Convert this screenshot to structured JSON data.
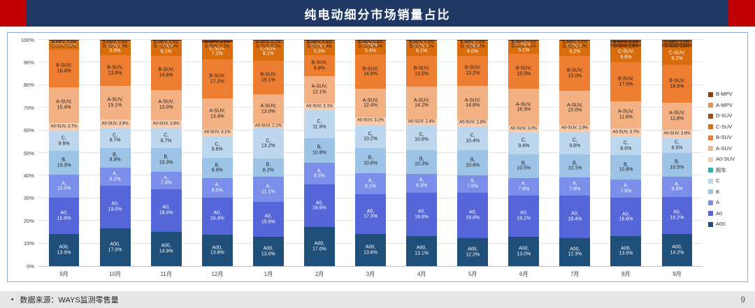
{
  "header": {
    "title": "纯电动细分市场销量占比",
    "bg_color": "#1F3864",
    "accent_color": "#C00000"
  },
  "footer": {
    "bullet": "•",
    "source": "数据来源：WAYS监测零售量",
    "page_number": "9"
  },
  "chart_data": {
    "type": "bar",
    "stacked": true,
    "percent_stacked": true,
    "title": "纯电动细分市场销量占比",
    "grid": true,
    "legend_position": "right",
    "ylim": [
      0,
      100
    ],
    "y_ticks": [
      "0%",
      "10%",
      "20%",
      "30%",
      "40%",
      "50%",
      "60%",
      "70%",
      "80%",
      "90%",
      "100%"
    ],
    "categories": [
      "9月",
      "10月",
      "11月",
      "12月",
      "1月",
      "2月",
      "3月",
      "4月",
      "5月",
      "6月",
      "7月",
      "8月",
      "9月"
    ],
    "legend_order": [
      "B-MPV",
      "A-MPV",
      "D-SUV",
      "C-SUV",
      "B-SUV",
      "A-SUV",
      "A0-SUV",
      "跑车",
      "C",
      "B",
      "A",
      "A0",
      "A00"
    ],
    "series": [
      {
        "name": "A00",
        "color": "#1F4E79",
        "label_color": "#FFFFFF",
        "show_label": true,
        "values": [
          13.9,
          17.0,
          14.9,
          13.8,
          13.0,
          17.0,
          13.8,
          13.1,
          12.2,
          13.0,
          12.3,
          13.0,
          14.2
        ]
      },
      {
        "name": "A0",
        "color": "#5566D9",
        "label_color": "#FFFFFF",
        "show_label": true,
        "values": [
          15.9,
          19.0,
          18.4,
          16.4,
          15.6,
          18.6,
          17.3,
          18.8,
          19.8,
          18.1,
          18.4,
          16.8,
          16.2
        ]
      },
      {
        "name": "A",
        "color": "#7B8EEA",
        "label_color": "#FFFFFF",
        "show_label": true,
        "values": [
          10.0,
          8.2,
          7.4,
          8.5,
          11.1,
          9.5,
          9.1,
          8.3,
          7.6,
          7.6,
          7.8,
          7.8,
          8.9
        ]
      },
      {
        "name": "B",
        "color": "#9DC3E6",
        "label_color": "#1A1A1A",
        "show_label": true,
        "values": [
          10.3,
          8.9,
          10.3,
          8.9,
          8.2,
          10.8,
          10.8,
          10.3,
          10.8,
          10.5,
          10.1,
          10.8,
          10.5
        ]
      },
      {
        "name": "C",
        "color": "#BDD7EE",
        "label_color": "#1A1A1A",
        "show_label": true,
        "values": [
          8.6,
          8.7,
          8.7,
          9.6,
          13.2,
          11.9,
          10.2,
          10.8,
          10.4,
          9.4,
          9.8,
          8.0,
          6.5
        ]
      },
      {
        "name": "跑车",
        "color": "#2CB5AE",
        "label_color": "#1A1A1A",
        "show_label": false,
        "values": [
          0,
          0,
          0,
          0,
          0,
          0,
          0,
          0,
          0,
          0,
          0,
          0,
          0
        ]
      },
      {
        "name": "A0-SUV",
        "color": "#F8CBAD",
        "label_color": "#1A1A1A",
        "show_label": true,
        "values": [
          3.7,
          3.9,
          3.6,
          3.1,
          2.2,
          3.1,
          3.2,
          2.4,
          2.8,
          3.0,
          2.9,
          3.7,
          3.8
        ]
      },
      {
        "name": "A-SUV",
        "color": "#F4B183",
        "label_color": "#1A1A1A",
        "show_label": true,
        "values": [
          15.4,
          15.1,
          13.0,
          13.4,
          13.0,
          12.1,
          12.4,
          14.2,
          14.8,
          16.3,
          15.0,
          11.8,
          11.8
        ]
      },
      {
        "name": "B-SUV",
        "color": "#ED7D31",
        "label_color": "#1A1A1A",
        "show_label": true,
        "values": [
          16.4,
          13.9,
          14.6,
          17.2,
          15.1,
          8.9,
          14.9,
          13.5,
          13.2,
          15.5,
          15.0,
          17.0,
          16.5
        ]
      },
      {
        "name": "C-SUV",
        "color": "#D96D0E",
        "label_color": "#FFFFFF",
        "show_label": true,
        "values": [
          3.4,
          5.8,
          6.1,
          7.2,
          8.1,
          5.5,
          5.4,
          6.1,
          6.0,
          5.1,
          6.2,
          6.6,
          8.2
        ]
      },
      {
        "name": "D-SUV",
        "color": "#A34D0A",
        "label_color": "#1A1A1A",
        "show_label": true,
        "label_row": 2,
        "values": [
          0.2,
          0.3,
          0.2,
          0.2,
          0.2,
          0.6,
          0.1,
          0.1,
          0.2,
          0.2,
          0.2,
          1.8,
          1.8
        ]
      },
      {
        "name": "A-MPV",
        "color": "#E8924A",
        "label_color": "#1A1A1A",
        "show_label": false,
        "values": [
          0.2,
          0.2,
          0.2,
          0.2,
          0.2,
          0.2,
          0.2,
          0.2,
          0.2,
          0.2,
          0.2,
          0.2,
          0.2
        ]
      },
      {
        "name": "B-MPV",
        "color": "#8C3D0C",
        "label_color": "#1A1A1A",
        "show_label": true,
        "label_row": 1,
        "values": [
          0.5,
          0.5,
          0.5,
          1.1,
          0.7,
          0.5,
          0.6,
          0.5,
          0.5,
          0.5,
          0.5,
          1.1,
          1.0
        ]
      }
    ]
  }
}
